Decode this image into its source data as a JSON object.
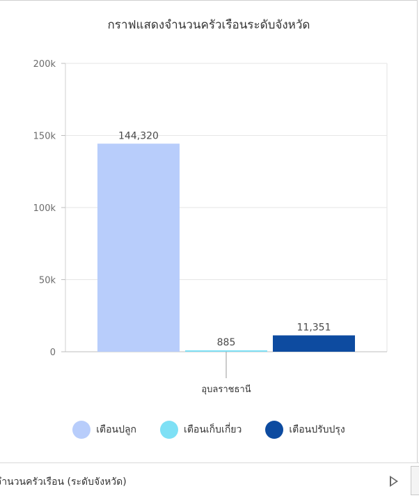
{
  "chart_data": {
    "type": "bar",
    "title": "กราฟแสดงจำนวนครัวเรือนระดับจังหวัด",
    "categories": [
      "อุบลราชธานี"
    ],
    "series": [
      {
        "name": "เตือนปลูก",
        "values": [
          144320
        ],
        "label": "144,320",
        "color": "#b8cdfb"
      },
      {
        "name": "เตือนเก็บเกี่ยว",
        "values": [
          885
        ],
        "label": "885",
        "color": "#7ee0f5"
      },
      {
        "name": "เตือนปรับปรุง",
        "values": [
          11351
        ],
        "label": "11,351",
        "color": "#0d4ba0"
      }
    ],
    "ylim": [
      0,
      200000
    ],
    "yticks": [
      0,
      50000,
      100000,
      150000,
      200000
    ],
    "ytick_labels": [
      "0",
      "50k",
      "100k",
      "150k",
      "200k"
    ],
    "grid": true,
    "legend_position": "bottom"
  },
  "footer": {
    "label": "จำนวนครัวเรือน (ระดับจังหวัด)"
  }
}
